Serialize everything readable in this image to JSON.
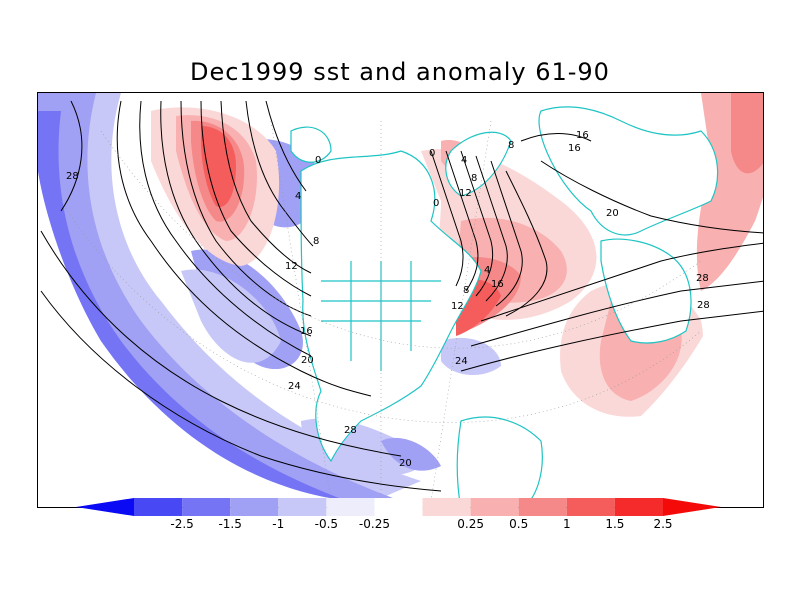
{
  "title": "Dec1999 sst and anomaly 61-90",
  "colors": {
    "land_outline": "#1fc4c4",
    "contour_line": "#000000",
    "land_fill": "#ffffff"
  },
  "colorbar": {
    "bins": [
      {
        "color": "#0a0af5"
      },
      {
        "color": "#4848f5"
      },
      {
        "color": "#7474f5"
      },
      {
        "color": "#a0a0f5"
      },
      {
        "color": "#c8c8f8"
      },
      {
        "color": "#ededfb"
      },
      {
        "color": "#ffffff"
      },
      {
        "color": "#fbd8d8"
      },
      {
        "color": "#f8b0b0"
      },
      {
        "color": "#f58888"
      },
      {
        "color": "#f55c5c"
      },
      {
        "color": "#f52a2a"
      },
      {
        "color": "#f50a0a"
      }
    ],
    "labels": [
      "-2.5",
      "-1.5",
      "-1",
      "-0.5",
      "-0.25",
      "0.25",
      "0.5",
      "1",
      "1.5",
      "2.5"
    ]
  },
  "contour_labels": [
    {
      "text": "28"
    },
    {
      "text": "0"
    },
    {
      "text": "4"
    },
    {
      "text": "8"
    },
    {
      "text": "12"
    },
    {
      "text": "16"
    },
    {
      "text": "20"
    },
    {
      "text": "24"
    },
    {
      "text": "28"
    },
    {
      "text": "0"
    },
    {
      "text": "4"
    },
    {
      "text": "8"
    },
    {
      "text": "12"
    },
    {
      "text": "16"
    },
    {
      "text": "20"
    },
    {
      "text": "24"
    },
    {
      "text": "28"
    },
    {
      "text": "28"
    },
    {
      "text": "0"
    },
    {
      "text": "4"
    },
    {
      "text": "8"
    },
    {
      "text": "12"
    },
    {
      "text": "16"
    },
    {
      "text": "8"
    },
    {
      "text": "16"
    },
    {
      "text": "20"
    }
  ]
}
